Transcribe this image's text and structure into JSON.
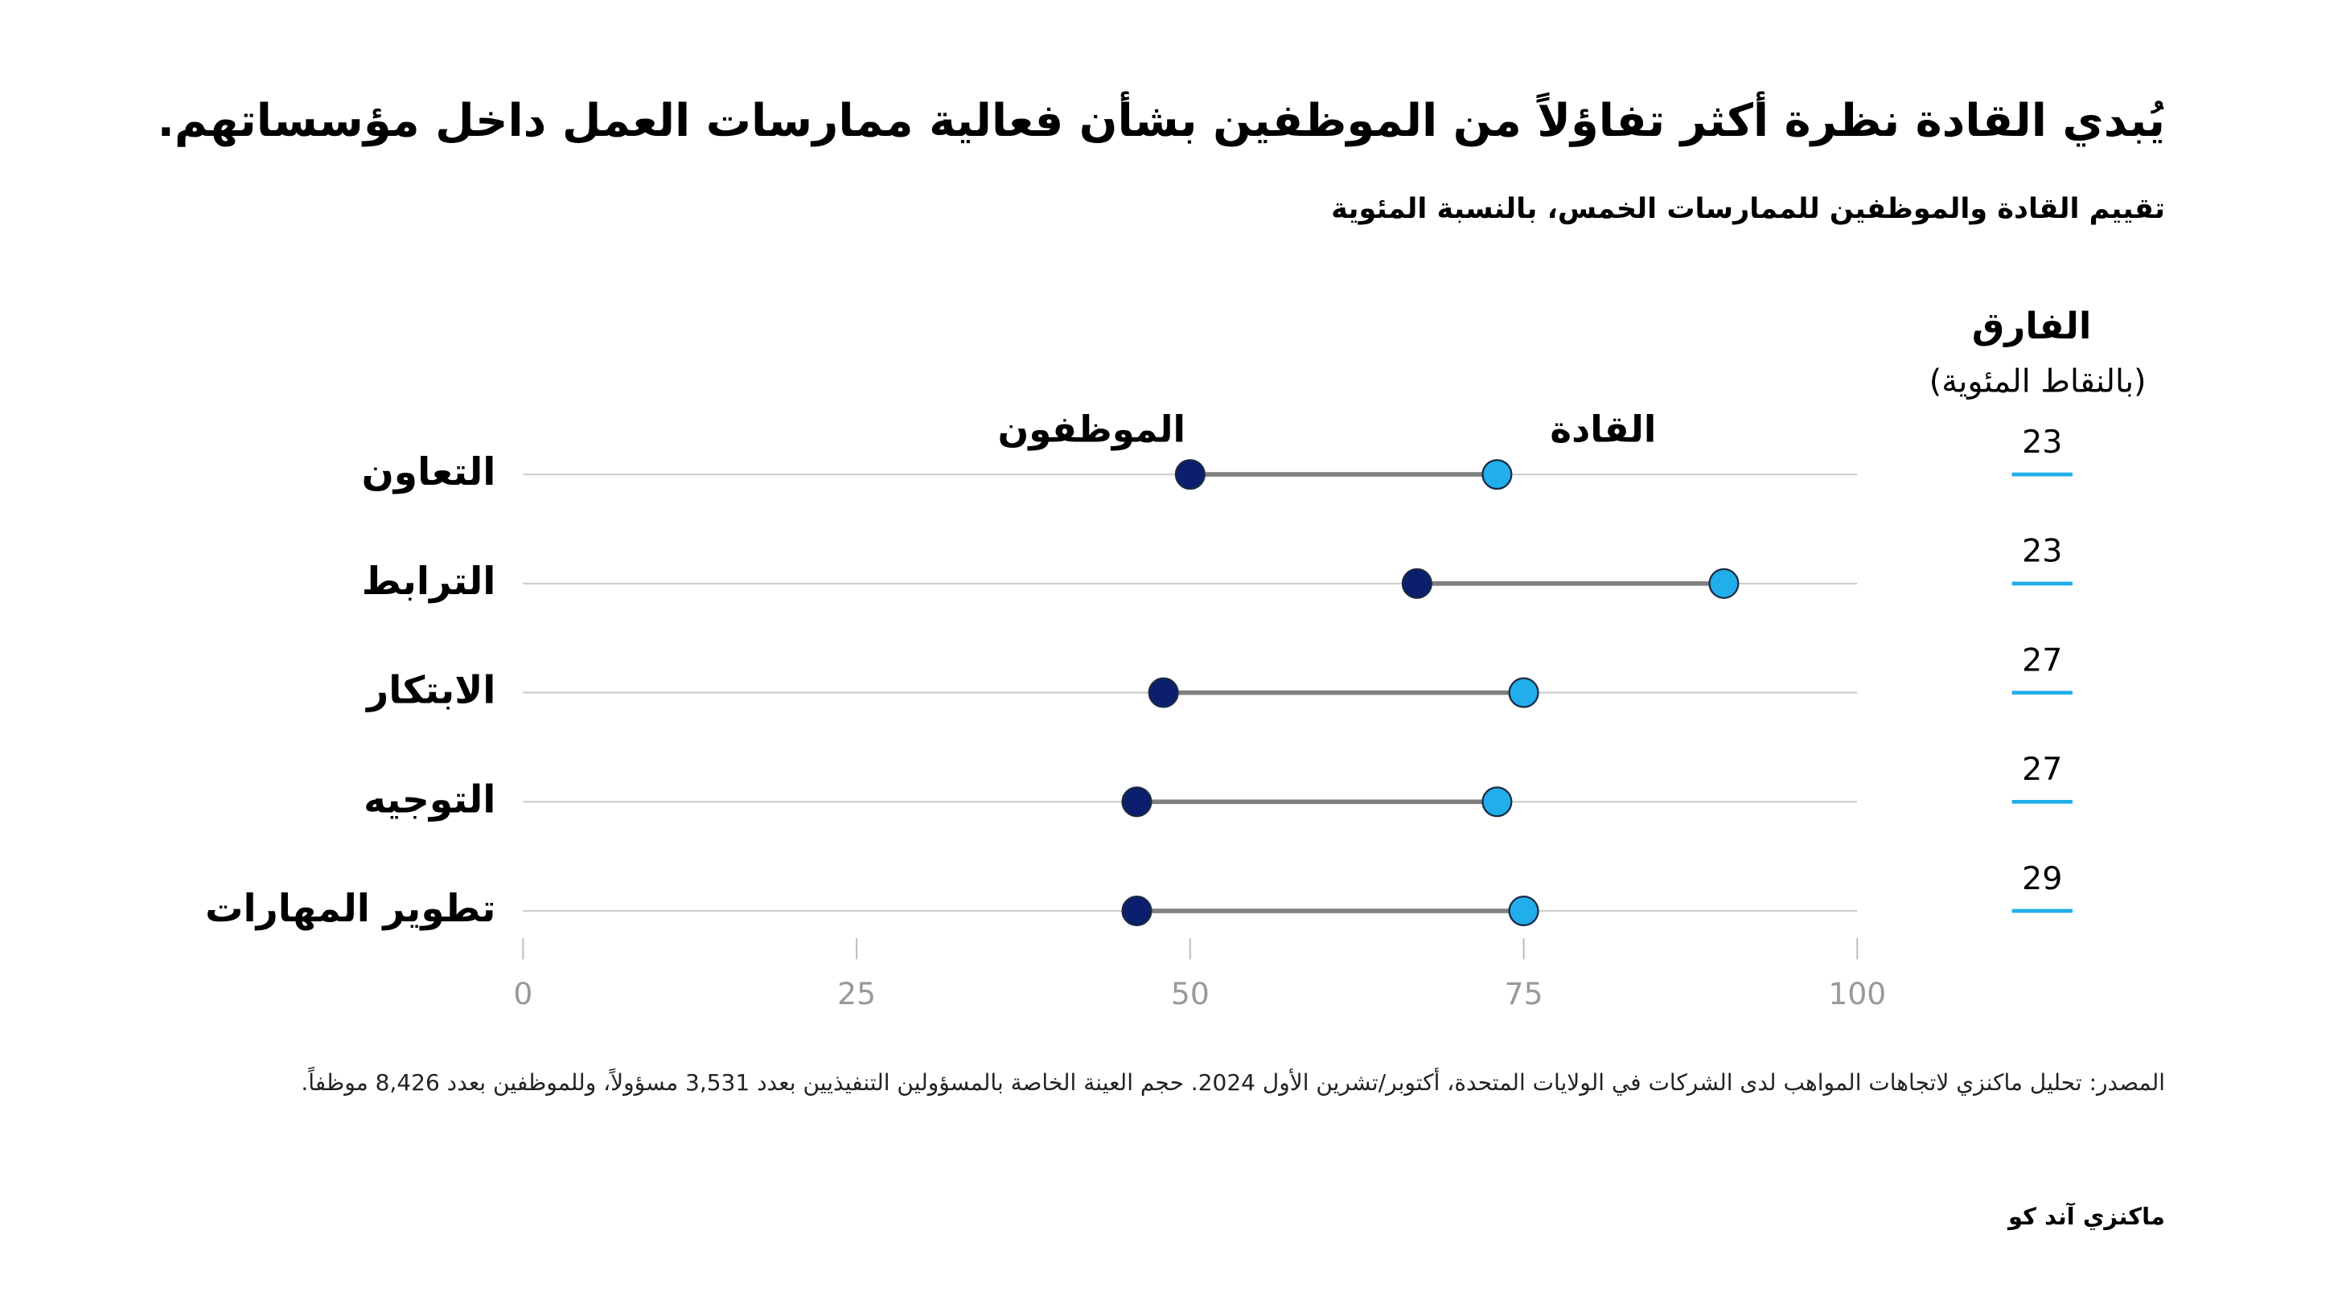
{
  "chart_data": {
    "type": "dumbbell",
    "title": "يُبدي القادة نظرة أكثر تفاؤلاً من الموظفين بشأن فعالية ممارسات العمل داخل مؤسساتهم.",
    "subtitle": "تقييم القادة والموظفين للممارسات الخمس، بالنسبة المئوية",
    "categories": [
      "التعاون",
      "الترابط",
      "الابتكار",
      "التوجيه",
      "تطوير المهارات"
    ],
    "series": [
      {
        "name": "الموظفون",
        "color": "#0b1f6e",
        "values": [
          50,
          67,
          48,
          46,
          46
        ]
      },
      {
        "name": "القادة",
        "color": "#21aeea",
        "values": [
          73,
          90,
          75,
          73,
          75
        ]
      }
    ],
    "difference_title": "الفارق",
    "difference_subtitle": "(بالنقاط المئوية)",
    "differences": [
      23,
      23,
      27,
      27,
      29
    ],
    "xlim": [
      0,
      100
    ],
    "xticks": [
      0,
      25,
      50,
      75,
      100
    ],
    "source": "المصدر: تحليل ماكنزي لاتجاهات المواهب لدى الشركات في الولايات المتحدة، أكتوبر/تشرين الأول 2024. حجم العينة الخاصة بالمسؤولين التنفيذيين بعدد 3,531 مسؤولاً، وللموظفين بعدد 8,426 موظفاً.",
    "brand": "ماكنزي آند كو"
  }
}
